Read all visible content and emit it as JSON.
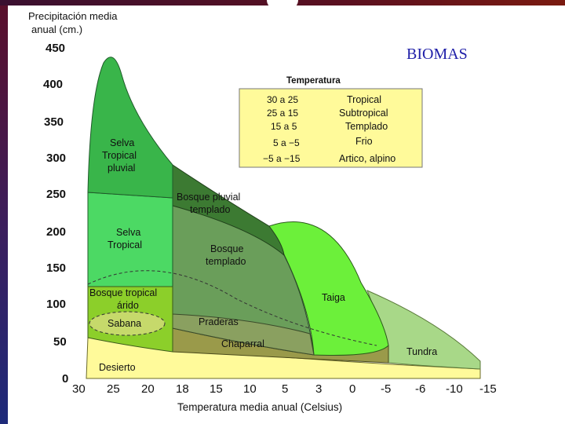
{
  "title": "BIOMAS",
  "y_axis": {
    "label_line1": "Precipitación media",
    "label_line2": "anual (cm.)",
    "ticks": [
      "450",
      "400",
      "350",
      "300",
      "250",
      "200",
      "150",
      "100",
      "50",
      "0"
    ]
  },
  "x_axis": {
    "label": "Temperatura media anual (Celsius)",
    "ticks": [
      "30",
      "25",
      "20",
      "18",
      "15",
      "10",
      "5",
      "3",
      "0",
      "-5",
      "-6",
      "-10",
      "-15"
    ]
  },
  "legend": {
    "heading": "Temperatura",
    "rows": [
      {
        "range": "30 a 25",
        "zone": "Tropical"
      },
      {
        "range": "25 a 15",
        "zone": "Subtropical"
      },
      {
        "range": "15 a  5",
        "zone": "Templado"
      },
      {
        "range": "5 a −5",
        "zone": "Frio"
      },
      {
        "range": "−5 a −15",
        "zone": "Artico, alpino"
      }
    ]
  },
  "biomes": {
    "selva_tropical_pluvial": {
      "line1": "Selva",
      "line2": "Tropical",
      "line3": "pluvial",
      "color": "#39b54a"
    },
    "bosque_pluvial_templado": {
      "line1": "Bosque pluvial",
      "line2": "templado",
      "color": "#3c7a32"
    },
    "selva_tropical": {
      "line1": "Selva",
      "line2": "Tropical",
      "color": "#4cd964"
    },
    "bosque_templado": {
      "line1": "Bosque",
      "line2": "templado",
      "color": "#6a9e5a"
    },
    "bosque_tropical_arido": {
      "line1": "Bosque tropical",
      "line2": "árido",
      "color": "#8ccf2a"
    },
    "sabana": {
      "label": "Sabana",
      "color": "#c6d96b"
    },
    "taiga": {
      "label": "Taiga",
      "color": "#6cf03a"
    },
    "praderas": {
      "label": "Praderas",
      "color": "#8aa060"
    },
    "chaparral": {
      "label": "Chaparral",
      "color": "#9a9a4a"
    },
    "tundra": {
      "label": "Tundra",
      "color": "#a8d888"
    },
    "desierto": {
      "label": "Desierto",
      "color": "#fffa9a"
    }
  }
}
